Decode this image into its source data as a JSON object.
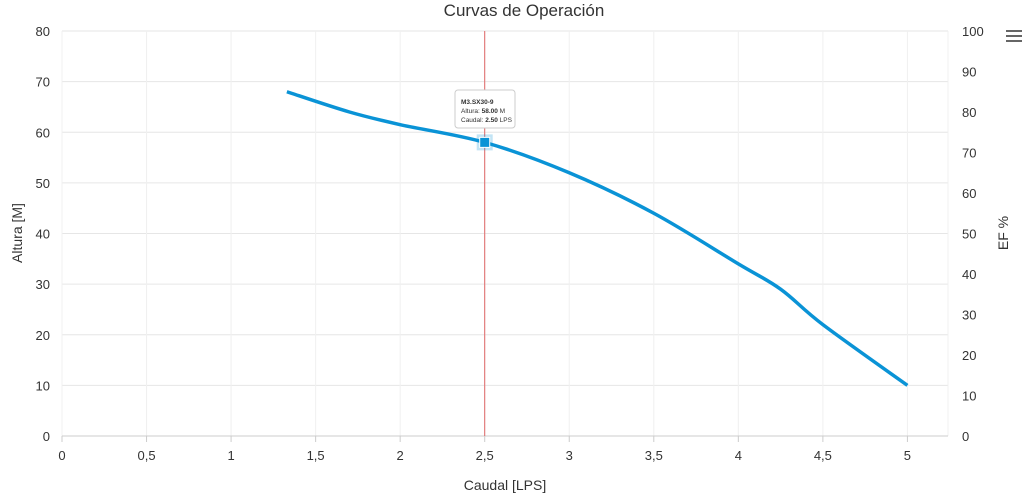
{
  "chart_data": {
    "type": "line",
    "title": "Curvas de Operación",
    "xlabel": "Caudal [LPS]",
    "ylabel": "Altura [M]",
    "y2label": "EF %",
    "xlim": [
      0,
      5.24
    ],
    "ylim": [
      0,
      80
    ],
    "y2lim": [
      0,
      100
    ],
    "xticks": [
      "0",
      "0,5",
      "1",
      "1,5",
      "2",
      "2,5",
      "3",
      "3,5",
      "4",
      "4,5",
      "5"
    ],
    "yticks": [
      "0",
      "10",
      "20",
      "30",
      "40",
      "50",
      "60",
      "70",
      "80"
    ],
    "y2ticks": [
      "0",
      "10",
      "20",
      "30",
      "40",
      "50",
      "60",
      "70",
      "80",
      "90",
      "100"
    ],
    "grid": true,
    "series": [
      {
        "name": "M3.SX30-9",
        "color": "#0a93d6",
        "x": [
          1.33,
          1.7,
          2.0,
          2.5,
          3.0,
          3.5,
          4.0,
          4.25,
          4.5,
          5.0
        ],
        "y": [
          68,
          64,
          61.5,
          58,
          52,
          44,
          34,
          29,
          22,
          10
        ]
      }
    ],
    "crosshair_x": 2.5,
    "crosshair_color": "#e06666",
    "tooltip": {
      "title": "M3.SX30-9",
      "line1_label": "Altura: ",
      "line1_value": "58.00",
      "line1_unit": " M",
      "line2_label": "Caudal: ",
      "line2_value": "2.50",
      "line2_unit": " LPS"
    }
  },
  "menu_icon": "hamburger-menu-icon"
}
